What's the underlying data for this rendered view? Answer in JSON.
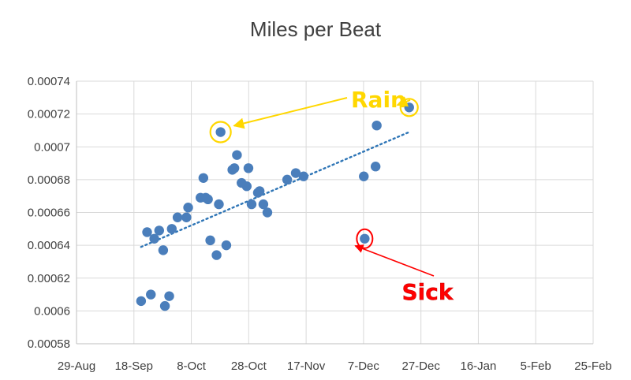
{
  "chart_data": {
    "type": "scatter",
    "title": "Miles per Beat",
    "xlabel": "",
    "ylabel": "",
    "grid": true,
    "legend": "none",
    "xlim_days": [
      0,
      180
    ],
    "x_origin_date": "29-Aug",
    "x_ticks": [
      {
        "day": 0,
        "label": "29-Aug"
      },
      {
        "day": 20,
        "label": "18-Sep"
      },
      {
        "day": 40,
        "label": "8-Oct"
      },
      {
        "day": 60,
        "label": "28-Oct"
      },
      {
        "day": 80,
        "label": "17-Nov"
      },
      {
        "day": 100,
        "label": "7-Dec"
      },
      {
        "day": 120,
        "label": "27-Dec"
      },
      {
        "day": 140,
        "label": "16-Jan"
      },
      {
        "day": 160,
        "label": "5-Feb"
      },
      {
        "day": 180,
        "label": "25-Feb"
      }
    ],
    "ylim": [
      0.00058,
      0.00074
    ],
    "y_ticks": [
      {
        "value": 0.00058,
        "label": "0.00058"
      },
      {
        "value": 0.0006,
        "label": "0.0006"
      },
      {
        "value": 0.00062,
        "label": "0.00062"
      },
      {
        "value": 0.00064,
        "label": "0.00064"
      },
      {
        "value": 0.00066,
        "label": "0.00066"
      },
      {
        "value": 0.00068,
        "label": "0.00068"
      },
      {
        "value": 0.0007,
        "label": "0.0007"
      },
      {
        "value": 0.00072,
        "label": "0.00072"
      },
      {
        "value": 0.00074,
        "label": "0.00074"
      }
    ],
    "series": [
      {
        "name": "Miles per Beat",
        "color": "#4a7ebb",
        "points": [
          {
            "x": 22.5,
            "y": 0.000606
          },
          {
            "x": 24.6,
            "y": 0.000648
          },
          {
            "x": 25.9,
            "y": 0.00061
          },
          {
            "x": 27.1,
            "y": 0.000644
          },
          {
            "x": 28.8,
            "y": 0.000649
          },
          {
            "x": 30.2,
            "y": 0.000637
          },
          {
            "x": 30.8,
            "y": 0.000603
          },
          {
            "x": 32.3,
            "y": 0.000609
          },
          {
            "x": 33.2,
            "y": 0.00065
          },
          {
            "x": 35.2,
            "y": 0.000657
          },
          {
            "x": 38.3,
            "y": 0.000657
          },
          {
            "x": 38.9,
            "y": 0.000663
          },
          {
            "x": 43.2,
            "y": 0.000669
          },
          {
            "x": 44.2,
            "y": 0.000681
          },
          {
            "x": 45.0,
            "y": 0.000669
          },
          {
            "x": 45.8,
            "y": 0.000668
          },
          {
            "x": 46.6,
            "y": 0.000643
          },
          {
            "x": 48.8,
            "y": 0.000634
          },
          {
            "x": 49.6,
            "y": 0.000665
          },
          {
            "x": 50.2,
            "y": 0.000709
          },
          {
            "x": 52.2,
            "y": 0.00064
          },
          {
            "x": 54.3,
            "y": 0.000686
          },
          {
            "x": 55.0,
            "y": 0.000687
          },
          {
            "x": 55.9,
            "y": 0.000695
          },
          {
            "x": 57.5,
            "y": 0.000678
          },
          {
            "x": 59.3,
            "y": 0.000676
          },
          {
            "x": 59.9,
            "y": 0.000687
          },
          {
            "x": 61.0,
            "y": 0.000665
          },
          {
            "x": 63.2,
            "y": 0.000672
          },
          {
            "x": 63.8,
            "y": 0.000673
          },
          {
            "x": 65.1,
            "y": 0.000665
          },
          {
            "x": 66.5,
            "y": 0.00066
          },
          {
            "x": 73.4,
            "y": 0.00068
          },
          {
            "x": 76.4,
            "y": 0.000684
          },
          {
            "x": 79.1,
            "y": 0.000682
          },
          {
            "x": 100.1,
            "y": 0.000682
          },
          {
            "x": 100.4,
            "y": 0.000644
          },
          {
            "x": 104.2,
            "y": 0.000688
          },
          {
            "x": 104.6,
            "y": 0.000713
          },
          {
            "x": 115.9,
            "y": 0.000724
          }
        ]
      }
    ],
    "trendline": {
      "type": "linear",
      "x": [
        22.5,
        115.9
      ],
      "y": [
        0.000639,
        0.000709
      ],
      "style": "dotted",
      "color": "#2e75b6"
    },
    "annotations": [
      {
        "text": "Rain",
        "color": "#ffd700",
        "circled_points": [
          19,
          39
        ]
      },
      {
        "text": "Sick",
        "color": "#ff0000",
        "circled_points": [
          36
        ]
      }
    ]
  }
}
